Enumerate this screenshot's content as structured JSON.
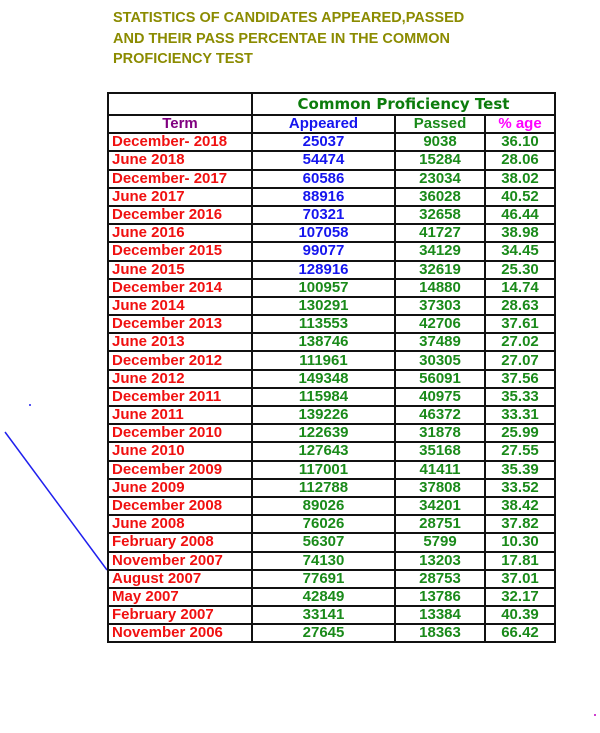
{
  "title": "STATISTICS OF CANDIDATES APPEARED,PASSED AND THEIR PASS PERCENTAE IN THE COMMON PROFICIENCY TEST",
  "table": {
    "group_header": "Common Proficiency Test",
    "columns": [
      "Term",
      "Appeared",
      "Passed",
      "% age"
    ],
    "colors": {
      "term": "#f01010",
      "appeared_recent": "#1515ee",
      "numbers": "#1a8a1a",
      "term_header": "#800080",
      "pct_header": "#ff00ff"
    },
    "rows": [
      [
        "December- 2018",
        "25037",
        "9038",
        "36.10"
      ],
      [
        "June 2018",
        "54474",
        "15284",
        "28.06"
      ],
      [
        "December- 2017",
        "60586",
        "23034",
        "38.02"
      ],
      [
        "June 2017",
        "88916",
        "36028",
        "40.52"
      ],
      [
        "December 2016",
        "70321",
        "32658",
        "46.44"
      ],
      [
        "June 2016",
        "107058",
        "41727",
        "38.98"
      ],
      [
        "December 2015",
        "99077",
        "34129",
        "34.45"
      ],
      [
        "June 2015",
        "128916",
        "32619",
        "25.30"
      ],
      [
        "December 2014",
        "100957",
        "14880",
        "14.74"
      ],
      [
        "June 2014",
        "130291",
        "37303",
        "28.63"
      ],
      [
        "December 2013",
        "113553",
        "42706",
        "37.61"
      ],
      [
        "June 2013",
        "138746",
        "37489",
        "27.02"
      ],
      [
        "December 2012",
        "111961",
        "30305",
        "27.07"
      ],
      [
        "June 2012",
        "149348",
        "56091",
        "37.56"
      ],
      [
        "December 2011",
        "115984",
        "40975",
        "35.33"
      ],
      [
        "June 2011",
        "139226",
        "46372",
        "33.31"
      ],
      [
        "December 2010",
        "122639",
        "31878",
        "25.99"
      ],
      [
        "June 2010",
        "127643",
        "35168",
        "27.55"
      ],
      [
        "December 2009",
        "117001",
        "41411",
        "35.39"
      ],
      [
        "June 2009",
        "112788",
        "37808",
        "33.52"
      ],
      [
        "December 2008",
        "89026",
        "34201",
        "38.42"
      ],
      [
        "June 2008",
        "76026",
        "28751",
        "37.82"
      ],
      [
        "February 2008",
        "56307",
        "5799",
        "10.30"
      ],
      [
        "November 2007",
        "74130",
        "13203",
        "17.81"
      ],
      [
        "August 2007",
        "77691",
        "28753",
        "37.01"
      ],
      [
        "May 2007",
        "42849",
        "13786",
        "32.17"
      ],
      [
        "February 2007",
        "33141",
        "13384",
        "40.39"
      ],
      [
        "November 2006",
        "27645",
        "18363",
        "66.42"
      ]
    ]
  }
}
